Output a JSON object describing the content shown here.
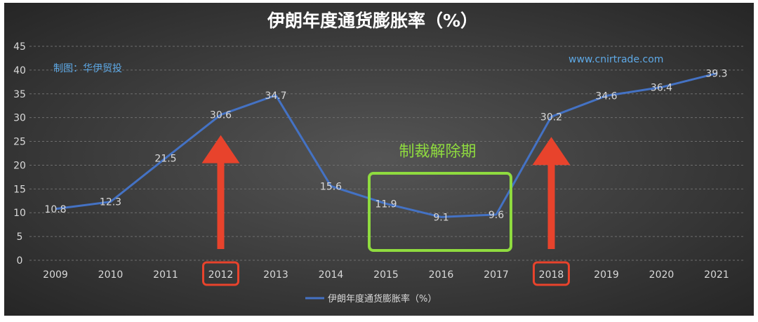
{
  "chart_data": {
    "type": "line",
    "title": "伊朗年度通货膨胀率（%）",
    "categories": [
      "2009",
      "2010",
      "2011",
      "2012",
      "2013",
      "2014",
      "2015",
      "2016",
      "2017",
      "2018",
      "2019",
      "2020",
      "2021"
    ],
    "series": [
      {
        "name": "伊朗年度通货膨胀率（%）",
        "values": [
          10.8,
          12.3,
          21.5,
          30.6,
          34.7,
          15.6,
          11.9,
          9.1,
          9.6,
          30.2,
          34.6,
          36.4,
          39.3
        ]
      }
    ],
    "data_labels": [
      "10.8",
      "12.3",
      "21.5",
      "30.6",
      "34.7",
      "15.6",
      "11.9",
      "9.1",
      "9.6",
      "30.2",
      "34.6",
      "36.4",
      "39.3"
    ],
    "yticks": [
      "0",
      "5",
      "10",
      "15",
      "20",
      "25",
      "30",
      "35",
      "40",
      "45"
    ],
    "ylim": [
      0,
      45
    ],
    "grid": true,
    "legend": "bottom",
    "annotations": {
      "credit": "制图：华伊贸投",
      "website": "www.cnirtrade.com",
      "period_label": "制裁解除期",
      "period_range": [
        "2015",
        "2017"
      ],
      "highlighted_years": [
        "2012",
        "2018"
      ]
    },
    "colors": {
      "background_center": "#555555",
      "background_edge": "#262626",
      "line": "#4472c4",
      "text": "#d9d9d9",
      "grid": "#6e6e6e",
      "title": "#ffffff",
      "accent_blue": "#5ea9e6",
      "period_box": "#8fdb3f",
      "arrow": "#e8432c"
    }
  }
}
